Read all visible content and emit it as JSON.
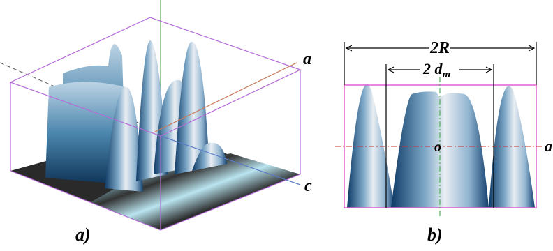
{
  "panel_a": {
    "axis_a": "a",
    "axis_c": "c",
    "caption": "a)"
  },
  "panel_b": {
    "dim_outer": "2R",
    "dim_inner": "2 d",
    "dim_inner_subscript": "m",
    "center": "o",
    "axis": "a",
    "caption": "b)"
  }
}
